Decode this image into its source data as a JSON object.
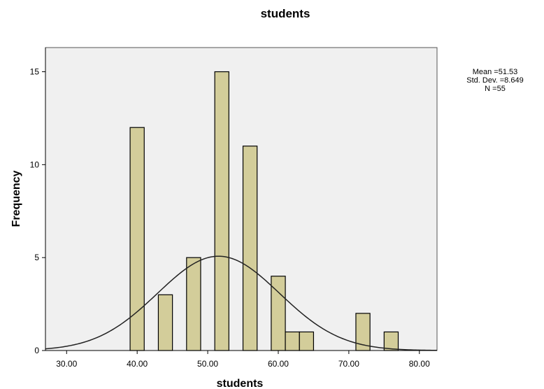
{
  "chart_data": {
    "type": "bar",
    "title": "students",
    "xlabel": "students",
    "ylabel": "Frequency",
    "xlim": [
      27,
      82.5
    ],
    "ylim": [
      0,
      16.3
    ],
    "x_ticks": [
      {
        "value": 30,
        "label": "30.00"
      },
      {
        "value": 40,
        "label": "40.00"
      },
      {
        "value": 50,
        "label": "50.00"
      },
      {
        "value": 60,
        "label": "60.00"
      },
      {
        "value": 70,
        "label": "70.00"
      },
      {
        "value": 80,
        "label": "80.00"
      }
    ],
    "y_ticks": [
      {
        "value": 0,
        "label": "0"
      },
      {
        "value": 5,
        "label": "5"
      },
      {
        "value": 10,
        "label": "10"
      },
      {
        "value": 15,
        "label": "15"
      }
    ],
    "bin_width": 2,
    "bins": [
      {
        "x": 40,
        "count": 12
      },
      {
        "x": 44,
        "count": 3
      },
      {
        "x": 48,
        "count": 5
      },
      {
        "x": 52,
        "count": 15
      },
      {
        "x": 56,
        "count": 11
      },
      {
        "x": 60,
        "count": 4
      },
      {
        "x": 62,
        "count": 1
      },
      {
        "x": 64,
        "count": 1
      },
      {
        "x": 72,
        "count": 2
      },
      {
        "x": 76,
        "count": 1
      }
    ],
    "normal_curve": {
      "mean": 51.53,
      "std_dev": 8.649,
      "n": 55
    },
    "grid": false,
    "stats": {
      "mean": "Mean =51.53",
      "std_dev": "Std. Dev. =8.649",
      "n": "N =55"
    },
    "colors": {
      "bar_fill": "#d3cd9a",
      "bar_stroke": "#000000",
      "plot_background": "#f0f0f0",
      "curve": "#222222"
    }
  }
}
